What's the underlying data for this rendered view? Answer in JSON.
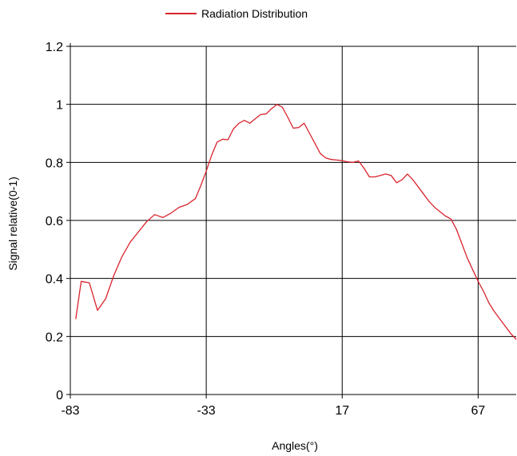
{
  "colors": {
    "background": "#ffffff",
    "grid": "#000000",
    "series": "#d9232d"
  },
  "chart_data": {
    "type": "line",
    "title": "",
    "xlabel": "Angles(°)",
    "ylabel": "Signal relative(0-1)",
    "xlim": [
      -83,
      81
    ],
    "ylim": [
      0,
      1.2
    ],
    "xticks": [
      "-83",
      "-33",
      "17",
      "67"
    ],
    "yticks": [
      "0",
      "0.2",
      "0.4",
      "0.6",
      "0.8",
      "1",
      "1.2"
    ],
    "grid": true,
    "legend_position": "top-center",
    "series": [
      {
        "name": "Radiation Distribution",
        "x": [
          -81,
          -79,
          -76,
          -73,
          -70,
          -67,
          -64,
          -61,
          -58,
          -55,
          -52,
          -49,
          -46,
          -43,
          -40,
          -37,
          -35,
          -33,
          -31,
          -29,
          -27,
          -25,
          -23,
          -21,
          -19,
          -17,
          -15,
          -13,
          -11,
          -9,
          -7,
          -5,
          -3,
          -1,
          1,
          3,
          5,
          7,
          9,
          11,
          13,
          15,
          17,
          19,
          21,
          23,
          25,
          27,
          29,
          31,
          33,
          35,
          37,
          39,
          41,
          43,
          45,
          47,
          49,
          51,
          53,
          55,
          57,
          59,
          61,
          63,
          65,
          67,
          69,
          71,
          73,
          75,
          77,
          79,
          81
        ],
        "values": [
          0.26,
          0.39,
          0.385,
          0.29,
          0.33,
          0.41,
          0.475,
          0.525,
          0.56,
          0.595,
          0.62,
          0.61,
          0.625,
          0.645,
          0.655,
          0.675,
          0.72,
          0.77,
          0.825,
          0.87,
          0.88,
          0.878,
          0.915,
          0.935,
          0.945,
          0.935,
          0.95,
          0.965,
          0.967,
          0.985,
          1.0,
          0.99,
          0.955,
          0.918,
          0.92,
          0.935,
          0.9,
          0.865,
          0.83,
          0.815,
          0.81,
          0.808,
          0.806,
          0.802,
          0.8,
          0.805,
          0.78,
          0.75,
          0.75,
          0.755,
          0.76,
          0.755,
          0.73,
          0.74,
          0.76,
          0.74,
          0.715,
          0.69,
          0.665,
          0.645,
          0.63,
          0.615,
          0.605,
          0.57,
          0.52,
          0.47,
          0.43,
          0.39,
          0.355,
          0.315,
          0.285,
          0.26,
          0.235,
          0.21,
          0.19
        ]
      }
    ]
  }
}
